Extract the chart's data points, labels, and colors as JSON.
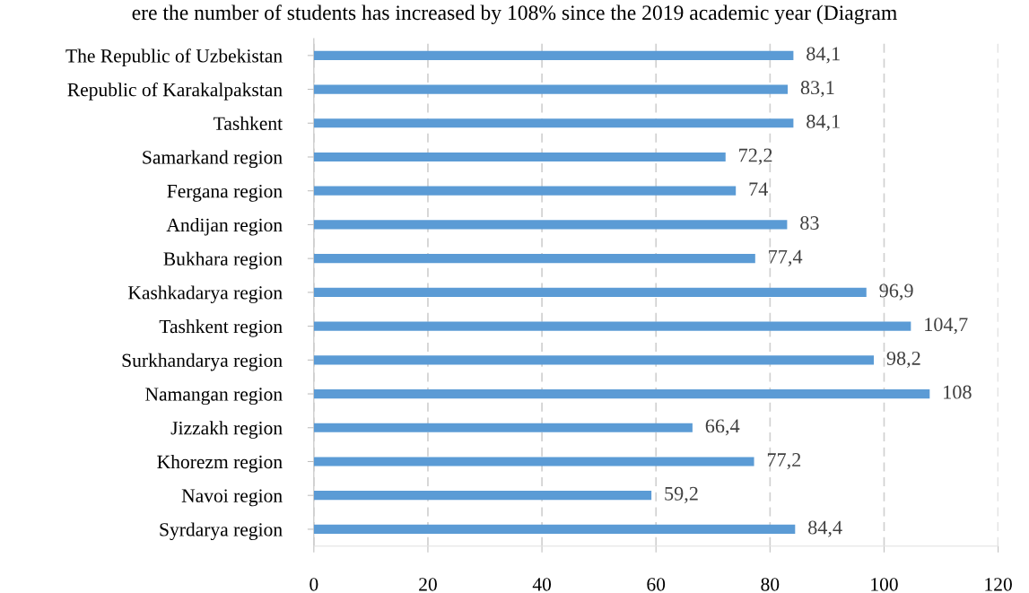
{
  "chart_data": {
    "type": "bar",
    "orientation": "horizontal",
    "title": "ere the number of students has increased by 108% since the 2019 academic year (Diagram",
    "categories": [
      "The Republic of Uzbekistan",
      "Republic of Karakalpakstan",
      "Tashkent",
      "Samarkand region",
      "Fergana region",
      "Andijan region",
      "Bukhara region",
      "Kashkadarya region",
      "Tashkent region",
      "Surkhandarya region",
      "Namangan region",
      "Jizzakh region",
      "Khorezm region",
      "Navoi region",
      "Syrdarya region"
    ],
    "values": [
      84.1,
      83.1,
      84.1,
      72.2,
      74,
      83,
      77.4,
      96.9,
      104.7,
      98.2,
      108,
      66.4,
      77.2,
      59.2,
      84.4
    ],
    "value_labels": [
      "84,1",
      "83,1",
      "84,1",
      "72,2",
      "74",
      "83",
      "77,4",
      "96,9",
      "104,7",
      "98,2",
      "108",
      "66,4",
      "77,2",
      "59,2",
      "84,4"
    ],
    "color": "#5b9bd5",
    "xlim": [
      0,
      120
    ],
    "xticks": [
      0,
      20,
      40,
      60,
      80,
      100,
      120
    ],
    "grid": "x"
  }
}
